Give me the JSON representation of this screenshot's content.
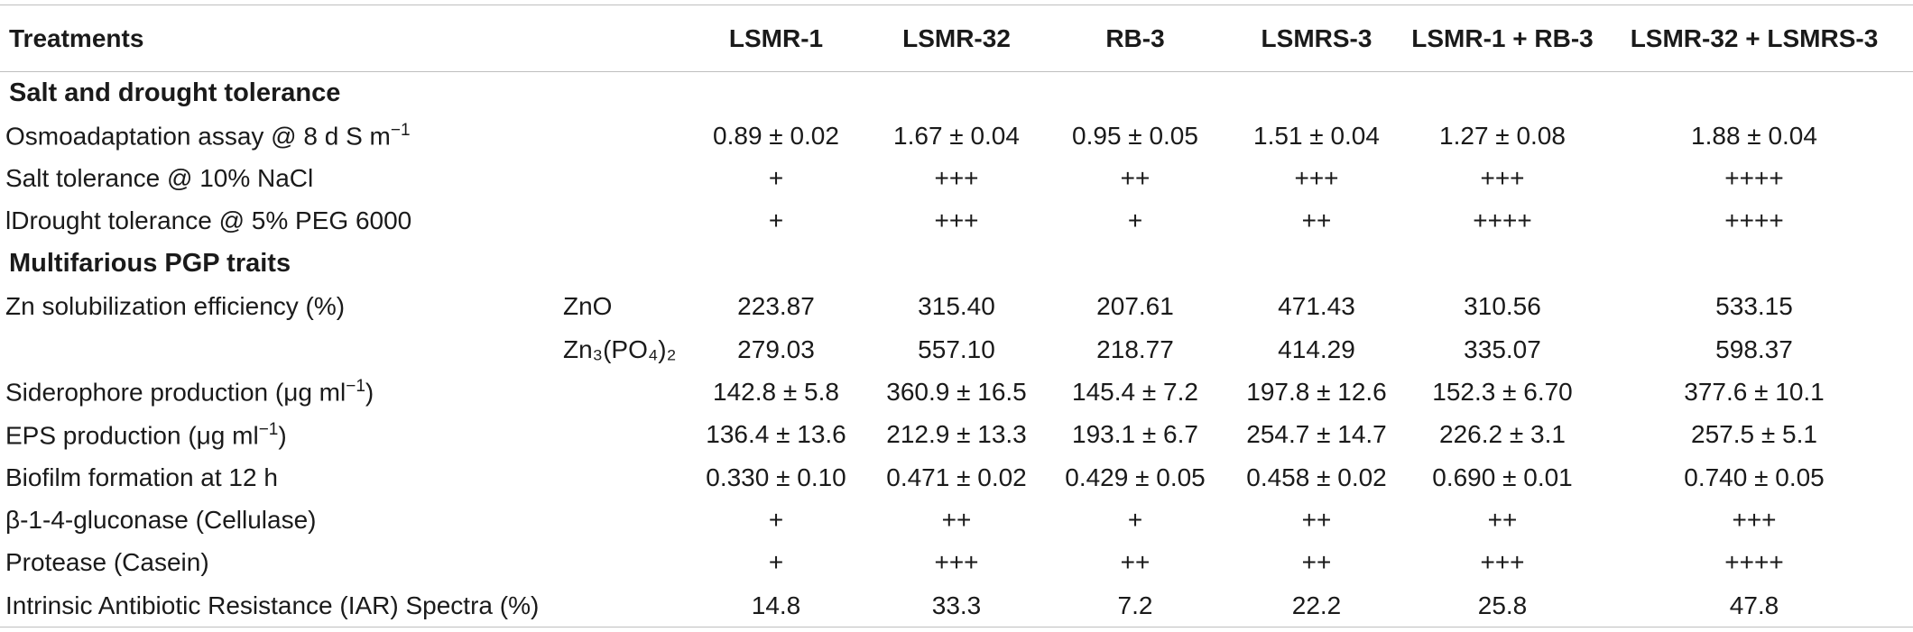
{
  "table": {
    "header": [
      "Treatments",
      "",
      "LSMR-1",
      "LSMR-32",
      "RB-3",
      "LSMRS-3",
      "LSMR-1 + RB-3",
      "LSMR-32 + LSMRS-3"
    ],
    "sections": [
      {
        "title": "Salt and drought tolerance",
        "rows": [
          {
            "label": "Osmoadaptation assay @ 8 d S m",
            "label_sup": "−1",
            "label_tail": "",
            "sub": "",
            "values": [
              "0.89 ± 0.02",
              "1.67 ± 0.04",
              "0.95 ± 0.05",
              "1.51 ± 0.04",
              "1.27 ± 0.08",
              "1.88 ± 0.04"
            ]
          },
          {
            "label": "Salt tolerance @ 10% NaCl",
            "label_sup": "",
            "label_tail": "",
            "sub": "",
            "values": [
              "+",
              "+++",
              "++",
              "+++",
              "+++",
              "++++"
            ]
          },
          {
            "label": "lDrought tolerance @ 5% PEG 6000",
            "label_sup": "",
            "label_tail": "",
            "sub": "",
            "values": [
              "+",
              "+++",
              "+",
              "++",
              "++++",
              "++++"
            ]
          }
        ]
      },
      {
        "title": "Multifarious PGP traits",
        "rows": [
          {
            "label": "Zn solubilization efficiency (%)",
            "label_sup": "",
            "label_tail": "",
            "sub": "ZnO",
            "values": [
              "223.87",
              "315.40",
              "207.61",
              "471.43",
              "310.56",
              "533.15"
            ]
          },
          {
            "label": "",
            "label_sup": "",
            "label_tail": "",
            "sub": "Zn₃(PO₄)₂",
            "values": [
              "279.03",
              "557.10",
              "218.77",
              "414.29",
              "335.07",
              "598.37"
            ]
          },
          {
            "label": "Siderophore production (μg ml",
            "label_sup": "−1",
            "label_tail": ")",
            "sub": "",
            "values": [
              "142.8 ± 5.8",
              "360.9 ± 16.5",
              "145.4 ± 7.2",
              "197.8 ± 12.6",
              "152.3 ± 6.70",
              "377.6 ± 10.1"
            ]
          },
          {
            "label": "EPS production (μg ml",
            "label_sup": "−1",
            "label_tail": ")",
            "sub": "",
            "values": [
              "136.4 ± 13.6",
              "212.9 ± 13.3",
              "193.1 ± 6.7",
              "254.7 ± 14.7",
              "226.2 ± 3.1",
              "257.5 ± 5.1"
            ]
          },
          {
            "label": "Biofilm formation at 12 h",
            "label_sup": "",
            "label_tail": "",
            "sub": "",
            "values": [
              "0.330 ± 0.10",
              "0.471 ± 0.02",
              "0.429 ± 0.05",
              "0.458 ± 0.02",
              "0.690 ± 0.01",
              "0.740 ± 0.05"
            ]
          },
          {
            "label": "β-1-4-gluconase (Cellulase)",
            "label_sup": "",
            "label_tail": "",
            "sub": "",
            "values": [
              "+",
              "++",
              "+",
              "++",
              "++",
              "+++"
            ]
          },
          {
            "label": "Protease (Casein)",
            "label_sup": "",
            "label_tail": "",
            "sub": "",
            "values": [
              "+",
              "+++",
              "++",
              "++",
              "+++",
              "++++"
            ]
          },
          {
            "label": "Intrinsic Antibiotic Resistance (IAR) Spectra (%)",
            "label_sup": "",
            "label_tail": "",
            "sub": "",
            "values": [
              "14.8",
              "33.3",
              "7.2",
              "22.2",
              "25.8",
              "47.8"
            ]
          }
        ]
      }
    ]
  }
}
